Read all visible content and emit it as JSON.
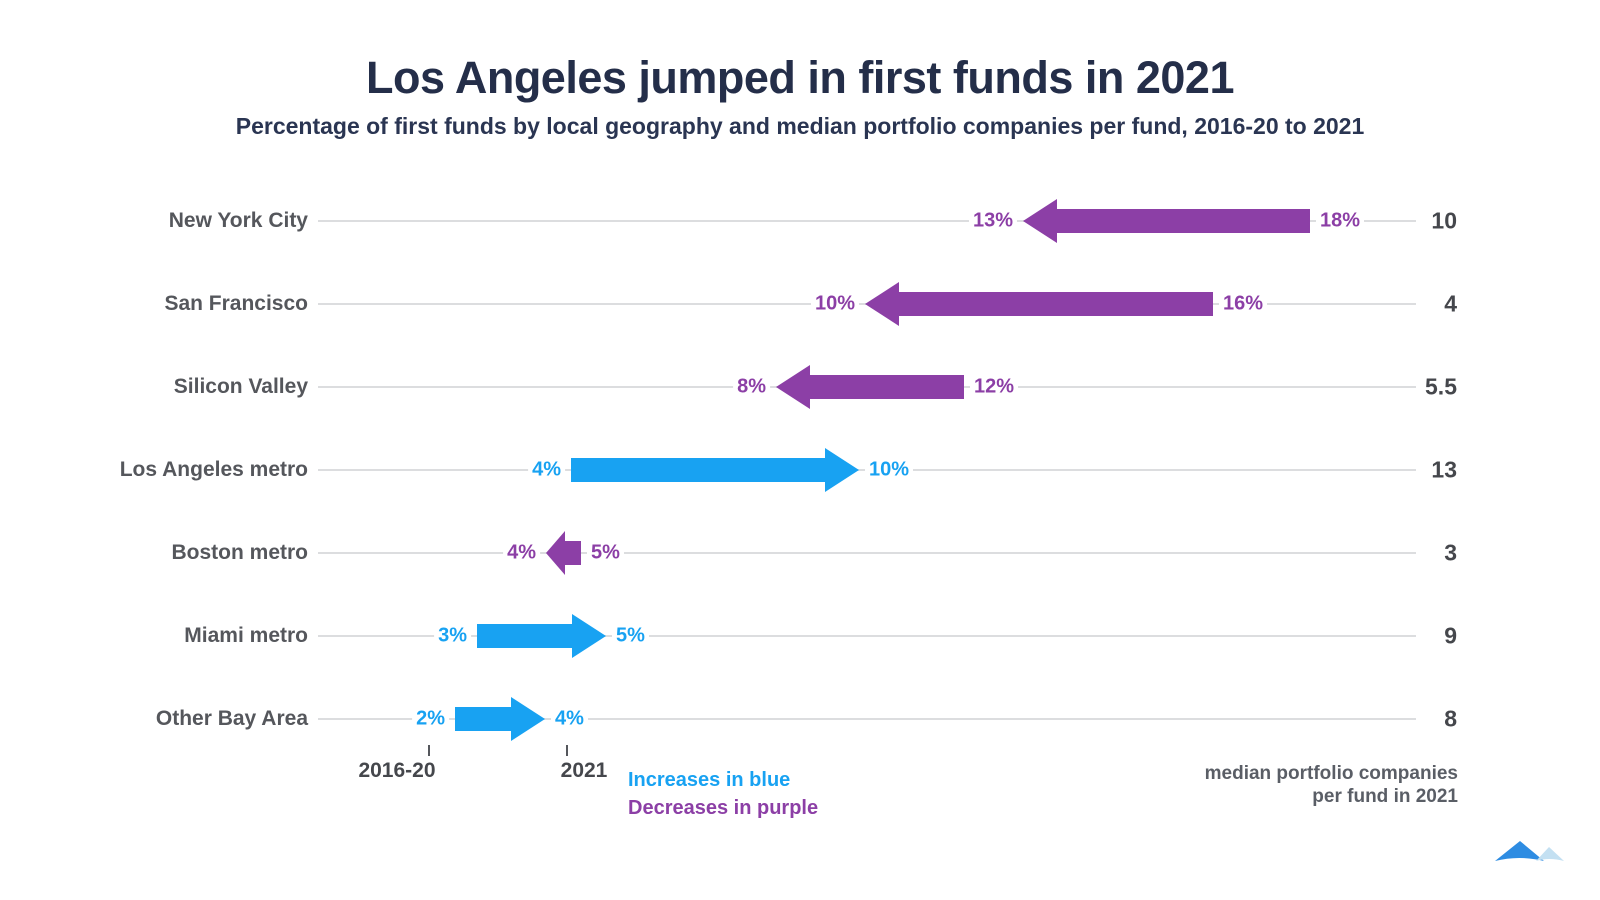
{
  "header": {
    "title": "Los Angeles jumped in first funds in 2021",
    "subtitle": "Percentage of first funds by local geography and median portfolio companies per fund, 2016-20 to 2021"
  },
  "chart_data": {
    "type": "dumbbell-arrow",
    "title": "Los Angeles jumped in first funds in 2021",
    "subtitle": "Percentage of first funds by local geography and median portfolio companies per fund, 2016-20 to 2021",
    "categories": [
      "New York City",
      "San Francisco",
      "Silicon Valley",
      "Los Angeles metro",
      "Boston metro",
      "Miami metro",
      "Other Bay Area"
    ],
    "series": [
      {
        "name": "2016-20",
        "values": [
          18,
          16,
          12,
          4,
          5,
          3,
          2
        ]
      },
      {
        "name": "2021",
        "values": [
          13,
          10,
          8,
          10,
          4,
          5,
          4
        ]
      }
    ],
    "unit": "%",
    "from_labels": [
      "18%",
      "16%",
      "12%",
      "4%",
      "5%",
      "3%",
      "2%"
    ],
    "to_labels": [
      "13%",
      "10%",
      "8%",
      "10%",
      "4%",
      "5%",
      "4%"
    ],
    "directions": [
      "decrease",
      "decrease",
      "decrease",
      "increase",
      "decrease",
      "increase",
      "increase"
    ],
    "median_portfolio_companies_2021": [
      10,
      4,
      5.5,
      13,
      3,
      9,
      8
    ],
    "median_labels": [
      "10",
      "4",
      "5.5",
      "13",
      "3",
      "9",
      "8"
    ],
    "colors": {
      "increase_blue": "#18a2f2",
      "decrease_purple": "#8c3fa6"
    },
    "legend": {
      "position": "bottom",
      "entries": [
        "Increases in blue",
        "Decreases in purple"
      ]
    },
    "x_axis": {
      "start_label": "2016-20",
      "end_label": "2021"
    },
    "right_axis_label": "median portfolio companies per fund in 2021"
  },
  "axis": {
    "start_label": "2016-20",
    "end_label": "2021"
  },
  "legend": {
    "increase_label": "Increases in blue",
    "decrease_label": "Decreases in purple"
  },
  "footer": {
    "caption_line1": "median portfolio companies",
    "caption_line2": "per fund in 2021"
  }
}
